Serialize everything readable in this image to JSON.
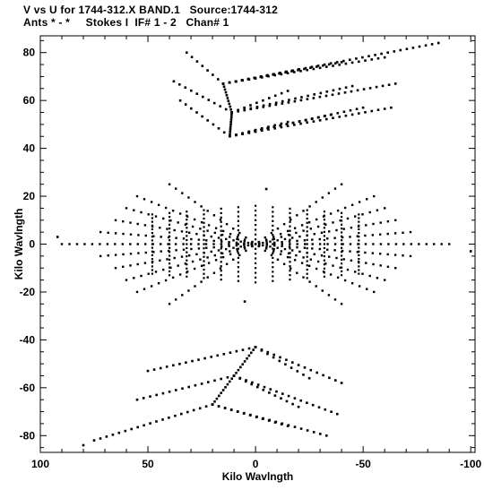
{
  "header": {
    "line1": "V vs U for 1744-312.X BAND.1   Source:1744-312",
    "line2": "Ants * - *     Stokes I  IF# 1 - 2   Chan# 1"
  },
  "chart_data": {
    "type": "scatter",
    "title": "V vs U for 1744-312.X BAND.1   Source:1744-312",
    "subtitle": "Ants * - *     Stokes I  IF# 1 - 2   Chan# 1",
    "xlabel": "Kilo Wavlngth",
    "ylabel": "Kilo Wavlngth",
    "xlim": [
      100,
      -102
    ],
    "ylim": [
      -87,
      87
    ],
    "xticks": [
      100,
      50,
      0,
      -50,
      -100
    ],
    "xtick_labels": [
      "100",
      "50",
      "0",
      "-50",
      "-100"
    ],
    "yticks": [
      -80,
      -60,
      -40,
      -20,
      0,
      20,
      40,
      60,
      80
    ],
    "ytick_labels": [
      "-80",
      "-60",
      "-40",
      "-20",
      "0",
      "20",
      "40",
      "60",
      "80"
    ],
    "grid": false,
    "marker_color": "#000000",
    "spokes_top": [
      {
        "hub": [
          12,
          45
        ],
        "points": [
          [
            35,
            60
          ],
          [
            -15,
            51
          ],
          [
            -35,
            54
          ],
          [
            -50,
            57
          ],
          [
            -63,
            57
          ]
        ]
      },
      {
        "hub": [
          11,
          55
        ],
        "points": [
          [
            38,
            68
          ],
          [
            -15,
            64
          ],
          [
            -45,
            66
          ],
          [
            -65,
            67
          ]
        ]
      },
      {
        "hub": [
          15,
          67
        ],
        "points": [
          [
            32,
            80
          ],
          [
            -20,
            73
          ],
          [
            -40,
            76
          ],
          [
            -60,
            78
          ],
          [
            -85,
            84
          ]
        ]
      }
    ],
    "spokes_bottom": [
      {
        "hub": [
          0,
          -43
        ],
        "points": [
          [
            50,
            -53
          ],
          [
            -25,
            -56
          ],
          [
            -40,
            -58
          ]
        ]
      },
      {
        "hub": [
          10,
          -55
        ],
        "points": [
          [
            55,
            -65
          ],
          [
            -20,
            -68
          ],
          [
            -38,
            -71
          ]
        ]
      },
      {
        "hub": [
          20,
          -67
        ],
        "points": [
          [
            75,
            -82
          ],
          [
            -15,
            -76
          ],
          [
            -33,
            -80
          ]
        ]
      }
    ],
    "fan_segments": [
      [
        55,
        -20,
        -55,
        20
      ],
      [
        60,
        -15,
        -60,
        15
      ],
      [
        65,
        -10,
        -65,
        10
      ],
      [
        72,
        -5,
        -72,
        5
      ],
      [
        90,
        0,
        -90,
        0
      ],
      [
        72,
        5,
        -72,
        -5
      ],
      [
        65,
        10,
        -65,
        -10
      ],
      [
        60,
        15,
        -60,
        -15
      ],
      [
        55,
        20,
        -55,
        -20
      ],
      [
        40,
        -25,
        -40,
        25
      ],
      [
        40,
        25,
        -40,
        -25
      ]
    ],
    "isolated_points": [
      [
        -5,
        23
      ],
      [
        5,
        -24
      ],
      [
        92,
        3
      ],
      [
        -100,
        -3
      ],
      [
        80,
        -84
      ]
    ]
  }
}
